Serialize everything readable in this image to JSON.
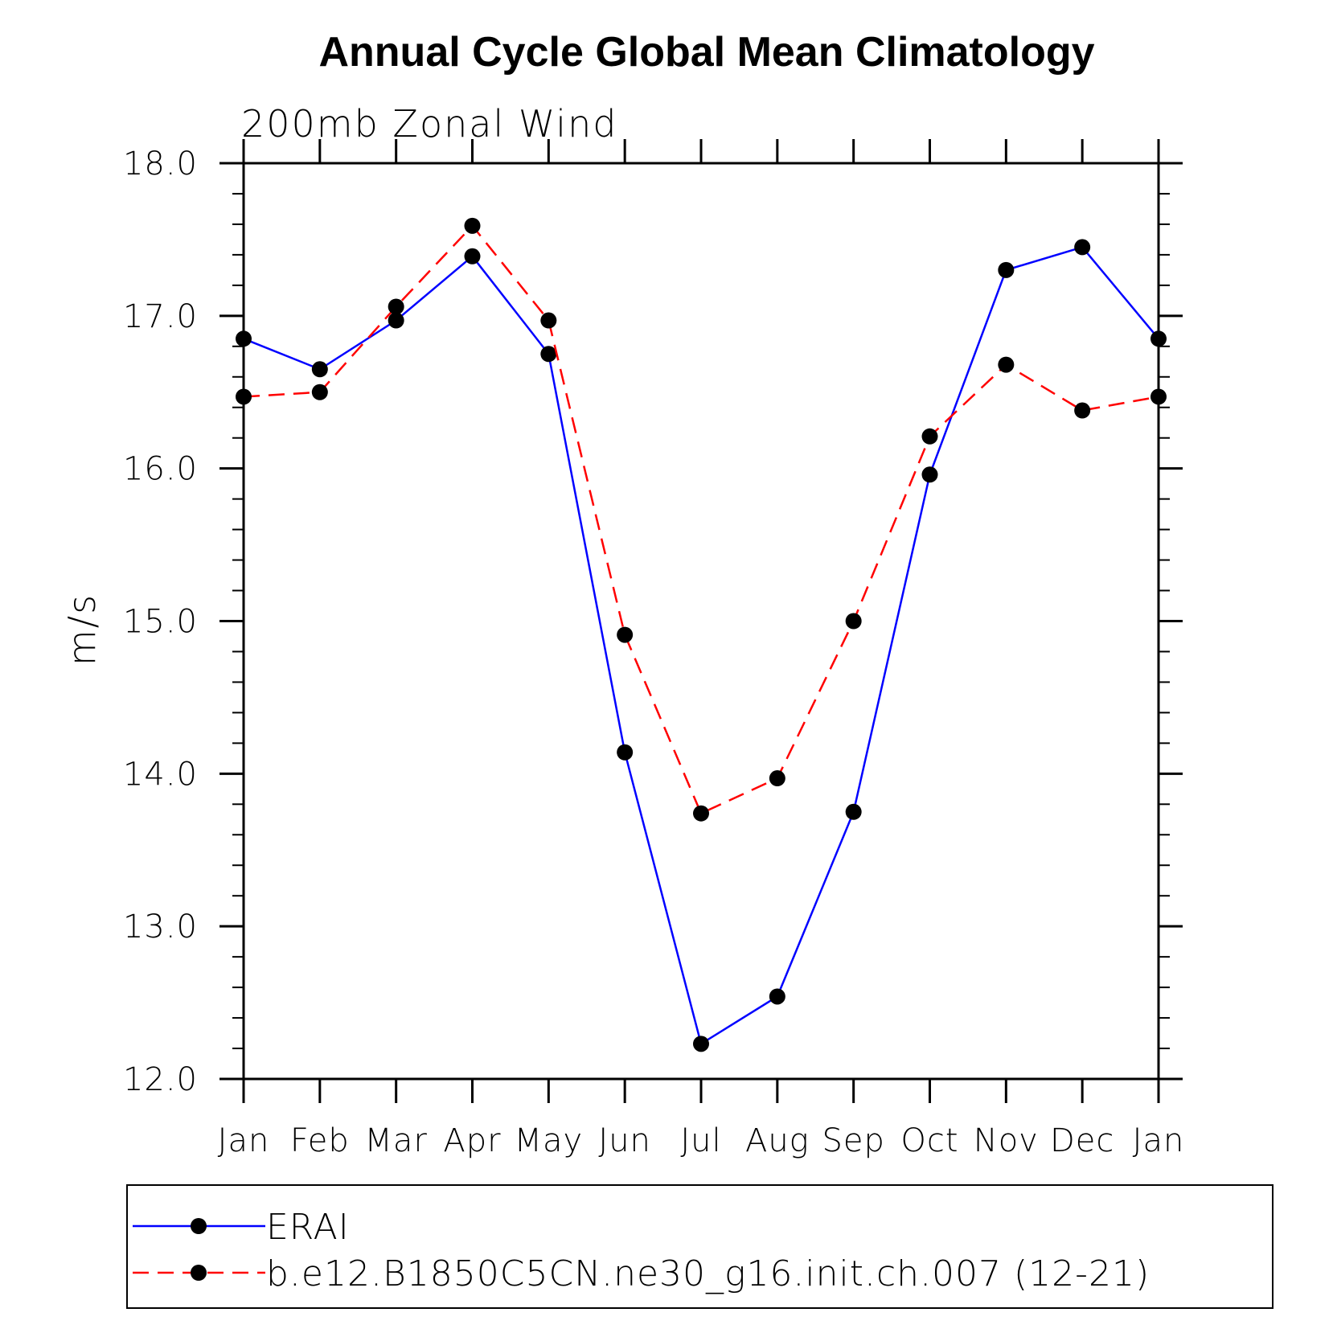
{
  "chart_data": {
    "type": "line",
    "title": "Annual Cycle Global Mean Climatology",
    "subtitle": "200mb Zonal Wind",
    "xlabel": "",
    "ylabel": "m/s",
    "categories": [
      "Jan",
      "Feb",
      "Mar",
      "Apr",
      "May",
      "Jun",
      "Jul",
      "Aug",
      "Sep",
      "Oct",
      "Nov",
      "Dec",
      "Jan"
    ],
    "ylim": [
      12.0,
      18.0
    ],
    "yticks": [
      "12.0",
      "13.0",
      "14.0",
      "15.0",
      "16.0",
      "17.0",
      "18.0"
    ],
    "grid": false,
    "legend_position": "bottom",
    "series": [
      {
        "name": "ERAI",
        "color": "#0000ff",
        "dash": "solid",
        "marker": "filled-circle",
        "values": [
          16.85,
          16.65,
          16.97,
          17.39,
          16.75,
          14.14,
          12.23,
          12.54,
          13.75,
          15.96,
          17.3,
          17.45,
          16.85
        ]
      },
      {
        "name": "b.e12.B1850C5CN.ne30_g16.init.ch.007 (12-21)",
        "color": "#ff0000",
        "dash": "dashed",
        "marker": "filled-circle",
        "values": [
          16.47,
          16.5,
          17.06,
          17.59,
          16.97,
          14.91,
          13.74,
          13.97,
          15.0,
          16.21,
          16.68,
          16.38,
          16.47
        ]
      }
    ]
  }
}
